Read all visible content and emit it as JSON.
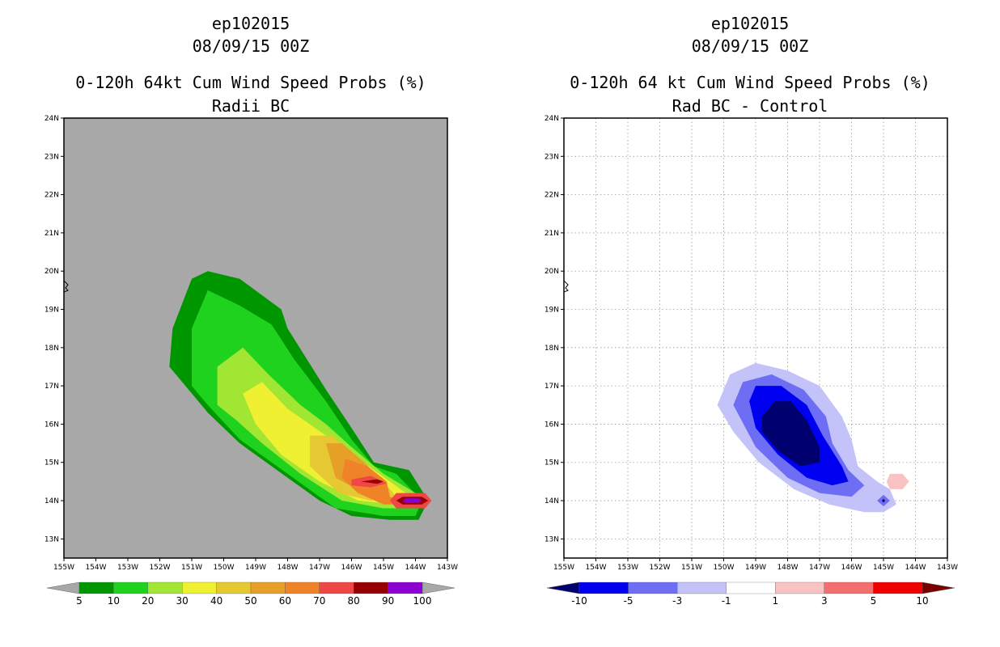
{
  "panels": [
    {
      "id": "left",
      "storm": "ep102015",
      "datetime": "08/09/15 00Z",
      "title": "0-120h 64kt Cum Wind Speed Probs (%)",
      "subtitle": "Radii BC",
      "background": "#a8a8a8",
      "gridlines": false,
      "colorbar": {
        "labels": [
          "5",
          "10",
          "20",
          "30",
          "40",
          "50",
          "60",
          "70",
          "80",
          "90",
          "100"
        ],
        "colors": [
          "#009600",
          "#1ed21e",
          "#a0e632",
          "#f0f032",
          "#e6c832",
          "#e6a028",
          "#f08228",
          "#f04646",
          "#960000",
          "#8c00d2"
        ],
        "end_colors": [
          "#a8a8a8",
          "#a8a8a8"
        ]
      }
    },
    {
      "id": "right",
      "storm": "ep102015",
      "datetime": "08/09/15 00Z",
      "title": "0-120h 64 kt Cum Wind Speed Probs (%)",
      "subtitle": "Rad BC - Control",
      "background": "#ffffff",
      "gridlines": true,
      "colorbar": {
        "labels": [
          "-10",
          "-5",
          "-3",
          "-1",
          "1",
          "3",
          "5",
          "10"
        ],
        "colors": [
          "#0000f0",
          "#6e6ef5",
          "#c3c3fa",
          "#ffffff",
          "#fac3c3",
          "#f56e6e",
          "#f00000"
        ],
        "end_colors": [
          "#00006e",
          "#780000"
        ]
      }
    }
  ],
  "chart_data": [
    {
      "type": "heatmap",
      "title": "0-120h 64kt Cum Wind Speed Probs (%)",
      "subtitle": "Radii BC",
      "units": "%",
      "xlabel": "",
      "ylabel": "",
      "xlim": [
        -155,
        -143
      ],
      "ylim": [
        12.5,
        24
      ],
      "x_ticks": [
        -155,
        -154,
        -153,
        -152,
        -151,
        -150,
        -149,
        -148,
        -147,
        -146,
        -145,
        -144,
        -143
      ],
      "x_tick_labels": [
        "155W",
        "154W",
        "153W",
        "152W",
        "151W",
        "150W",
        "149W",
        "148W",
        "147W",
        "146W",
        "145W",
        "144W",
        "143W"
      ],
      "y_ticks": [
        13,
        14,
        15,
        16,
        17,
        18,
        19,
        20,
        21,
        22,
        23,
        24
      ],
      "y_tick_labels": [
        "13N",
        "14N",
        "15N",
        "16N",
        "17N",
        "18N",
        "19N",
        "20N",
        "21N",
        "22N",
        "23N",
        "24N"
      ],
      "contour_levels": [
        5,
        10,
        20,
        30,
        40,
        50,
        60,
        70,
        80,
        90,
        100
      ],
      "regions": [
        {
          "level": 5,
          "polygon": [
            [
              -151.7,
              17.5
            ],
            [
              -151.6,
              18.5
            ],
            [
              -151.0,
              19.8
            ],
            [
              -150.5,
              20.0
            ],
            [
              -149.5,
              19.8
            ],
            [
              -148.2,
              19.0
            ],
            [
              -148.0,
              18.5
            ],
            [
              -146.8,
              16.9
            ],
            [
              -146.0,
              15.9
            ],
            [
              -145.3,
              15.0
            ],
            [
              -144.2,
              14.8
            ],
            [
              -143.6,
              14.0
            ],
            [
              -143.9,
              13.5
            ],
            [
              -144.8,
              13.5
            ],
            [
              -146.0,
              13.6
            ],
            [
              -147.0,
              14.0
            ],
            [
              -148.0,
              14.6
            ],
            [
              -149.5,
              15.5
            ],
            [
              -150.5,
              16.3
            ]
          ]
        },
        {
          "level": 10,
          "polygon": [
            [
              -151.0,
              17.0
            ],
            [
              -151.0,
              18.5
            ],
            [
              -150.5,
              19.5
            ],
            [
              -149.5,
              19.1
            ],
            [
              -148.5,
              18.6
            ],
            [
              -147.8,
              17.7
            ],
            [
              -146.8,
              16.6
            ],
            [
              -146.0,
              15.6
            ],
            [
              -145.3,
              14.9
            ],
            [
              -144.6,
              14.7
            ],
            [
              -143.8,
              14.0
            ],
            [
              -144.0,
              13.6
            ],
            [
              -145.0,
              13.6
            ],
            [
              -146.5,
              13.8
            ],
            [
              -148.0,
              14.7
            ],
            [
              -149.5,
              15.6
            ],
            [
              -150.5,
              16.5
            ]
          ]
        },
        {
          "level": 20,
          "polygon": [
            [
              -150.2,
              16.5
            ],
            [
              -150.2,
              17.5
            ],
            [
              -149.4,
              18.0
            ],
            [
              -148.6,
              17.3
            ],
            [
              -147.6,
              16.5
            ],
            [
              -146.8,
              16.0
            ],
            [
              -146.0,
              15.4
            ],
            [
              -145.0,
              14.7
            ],
            [
              -144.0,
              14.2
            ],
            [
              -144.0,
              13.8
            ],
            [
              -145.0,
              13.8
            ],
            [
              -146.3,
              14.0
            ],
            [
              -147.6,
              14.7
            ],
            [
              -148.8,
              15.5
            ],
            [
              -149.6,
              16.1
            ]
          ]
        },
        {
          "level": 30,
          "polygon": [
            [
              -149.4,
              16.8
            ],
            [
              -148.8,
              17.1
            ],
            [
              -148.0,
              16.4
            ],
            [
              -146.8,
              15.7
            ],
            [
              -145.8,
              15.1
            ],
            [
              -144.8,
              14.5
            ],
            [
              -144.3,
              14.2
            ],
            [
              -144.5,
              13.9
            ],
            [
              -145.8,
              14.0
            ],
            [
              -147.0,
              14.5
            ],
            [
              -148.2,
              15.2
            ],
            [
              -149.0,
              16.0
            ]
          ]
        },
        {
          "level": 40,
          "polygon": [
            [
              -147.3,
              15.7
            ],
            [
              -146.6,
              15.7
            ],
            [
              -146.0,
              15.2
            ],
            [
              -145.0,
              14.5
            ],
            [
              -144.6,
              14.1
            ],
            [
              -145.4,
              14.0
            ],
            [
              -146.4,
              14.2
            ],
            [
              -147.3,
              14.9
            ]
          ]
        },
        {
          "level": 50,
          "polygon": [
            [
              -146.8,
              15.5
            ],
            [
              -146.3,
              15.5
            ],
            [
              -145.6,
              15.0
            ],
            [
              -144.9,
              14.4
            ],
            [
              -145.6,
              14.2
            ],
            [
              -146.5,
              14.6
            ]
          ]
        },
        {
          "level": 60,
          "polygon": [
            [
              -146.2,
              15.1
            ],
            [
              -145.5,
              14.9
            ],
            [
              -144.9,
              14.5
            ],
            [
              -144.8,
              14.1
            ],
            [
              -144.0,
              13.9
            ],
            [
              -145.0,
              13.9
            ],
            [
              -145.8,
              14.2
            ],
            [
              -146.3,
              14.6
            ]
          ]
        },
        {
          "level": 70,
          "polygon": [
            [
              -146.0,
              14.55
            ],
            [
              -145.4,
              14.65
            ],
            [
              -144.9,
              14.45
            ],
            [
              -145.4,
              14.35
            ],
            [
              -146.0,
              14.4
            ]
          ]
        },
        {
          "level": 70,
          "polygon": [
            [
              -144.8,
              14.0
            ],
            [
              -144.6,
              14.2
            ],
            [
              -143.7,
              14.2
            ],
            [
              -143.5,
              14.0
            ],
            [
              -143.7,
              13.8
            ],
            [
              -144.6,
              13.8
            ]
          ]
        },
        {
          "level": 80,
          "polygon": [
            [
              -145.7,
              14.5
            ],
            [
              -145.2,
              14.56
            ],
            [
              -145.0,
              14.5
            ],
            [
              -145.2,
              14.44
            ]
          ]
        },
        {
          "level": 80,
          "polygon": [
            [
              -144.6,
              14.0
            ],
            [
              -144.4,
              14.1
            ],
            [
              -143.8,
              14.1
            ],
            [
              -143.6,
              14.0
            ],
            [
              -143.8,
              13.9
            ],
            [
              -144.4,
              13.9
            ]
          ]
        },
        {
          "level": 90,
          "polygon": [
            [
              -144.4,
              14.0
            ],
            [
              -144.3,
              14.06
            ],
            [
              -143.9,
              14.06
            ],
            [
              -143.8,
              14.0
            ],
            [
              -143.9,
              13.94
            ],
            [
              -144.3,
              13.94
            ]
          ]
        }
      ]
    },
    {
      "type": "heatmap",
      "title": "0-120h 64 kt Cum Wind Speed Probs (%)",
      "subtitle": "Rad BC - Control",
      "units": "%",
      "xlabel": "",
      "ylabel": "",
      "xlim": [
        -155,
        -143
      ],
      "ylim": [
        12.5,
        24
      ],
      "grid": true,
      "x_ticks": [
        -155,
        -154,
        -153,
        -152,
        -151,
        -150,
        -149,
        -148,
        -147,
        -146,
        -145,
        -144,
        -143
      ],
      "x_tick_labels": [
        "155W",
        "154W",
        "153W",
        "152W",
        "151W",
        "150W",
        "149W",
        "148W",
        "147W",
        "146W",
        "145W",
        "144W",
        "143W"
      ],
      "y_ticks": [
        13,
        14,
        15,
        16,
        17,
        18,
        19,
        20,
        21,
        22,
        23,
        24
      ],
      "y_tick_labels": [
        "13N",
        "14N",
        "15N",
        "16N",
        "17N",
        "18N",
        "19N",
        "20N",
        "21N",
        "22N",
        "23N",
        "24N"
      ],
      "contour_levels": [
        -10,
        -5,
        -3,
        -1,
        1,
        3,
        5,
        10
      ],
      "regions": [
        {
          "level": -1,
          "polygon": [
            [
              -150.2,
              16.5
            ],
            [
              -149.8,
              17.3
            ],
            [
              -149.0,
              17.6
            ],
            [
              -148.0,
              17.4
            ],
            [
              -147.0,
              17.0
            ],
            [
              -146.3,
              16.2
            ],
            [
              -146.0,
              15.6
            ],
            [
              -145.8,
              14.9
            ],
            [
              -145.2,
              14.5
            ],
            [
              -144.8,
              14.3
            ],
            [
              -144.6,
              13.9
            ],
            [
              -145.0,
              13.7
            ],
            [
              -145.6,
              13.7
            ],
            [
              -146.7,
              13.9
            ],
            [
              -147.8,
              14.3
            ],
            [
              -148.9,
              15.0
            ],
            [
              -149.7,
              15.8
            ]
          ]
        },
        {
          "level": -3,
          "polygon": [
            [
              -149.7,
              16.5
            ],
            [
              -149.4,
              17.1
            ],
            [
              -148.5,
              17.3
            ],
            [
              -147.5,
              16.9
            ],
            [
              -146.8,
              16.2
            ],
            [
              -146.6,
              15.5
            ],
            [
              -146.1,
              14.8
            ],
            [
              -145.6,
              14.4
            ],
            [
              -146.0,
              14.1
            ],
            [
              -147.0,
              14.2
            ],
            [
              -148.0,
              14.6
            ],
            [
              -149.0,
              15.4
            ]
          ]
        },
        {
          "level": -5,
          "polygon": [
            [
              -149.2,
              16.6
            ],
            [
              -149.0,
              17.0
            ],
            [
              -148.2,
              17.0
            ],
            [
              -147.4,
              16.5
            ],
            [
              -146.9,
              15.7
            ],
            [
              -146.3,
              14.9
            ],
            [
              -146.1,
              14.5
            ],
            [
              -146.6,
              14.4
            ],
            [
              -147.4,
              14.6
            ],
            [
              -148.3,
              15.2
            ],
            [
              -149.0,
              15.9
            ]
          ]
        },
        {
          "level": -10,
          "polygon": [
            [
              -148.8,
              16.2
            ],
            [
              -148.4,
              16.6
            ],
            [
              -147.9,
              16.6
            ],
            [
              -147.4,
              16.1
            ],
            [
              -147.0,
              15.4
            ],
            [
              -147.0,
              15.0
            ],
            [
              -147.6,
              14.9
            ],
            [
              -148.3,
              15.3
            ],
            [
              -148.8,
              15.8
            ]
          ]
        },
        {
          "level": -3,
          "polygon": [
            [
              -145.2,
              14.0
            ],
            [
              -145.0,
              14.15
            ],
            [
              -144.8,
              14.0
            ],
            [
              -145.0,
              13.85
            ]
          ]
        },
        {
          "level": -10,
          "polygon": [
            [
              -145.05,
              14.0
            ],
            [
              -145.0,
              14.05
            ],
            [
              -144.95,
              14.0
            ],
            [
              -145.0,
              13.95
            ]
          ]
        },
        {
          "level": 1,
          "polygon": [
            [
              -144.8,
              14.7
            ],
            [
              -144.4,
              14.7
            ],
            [
              -144.2,
              14.5
            ],
            [
              -144.4,
              14.3
            ],
            [
              -144.8,
              14.3
            ],
            [
              -144.9,
              14.5
            ]
          ]
        }
      ]
    }
  ]
}
